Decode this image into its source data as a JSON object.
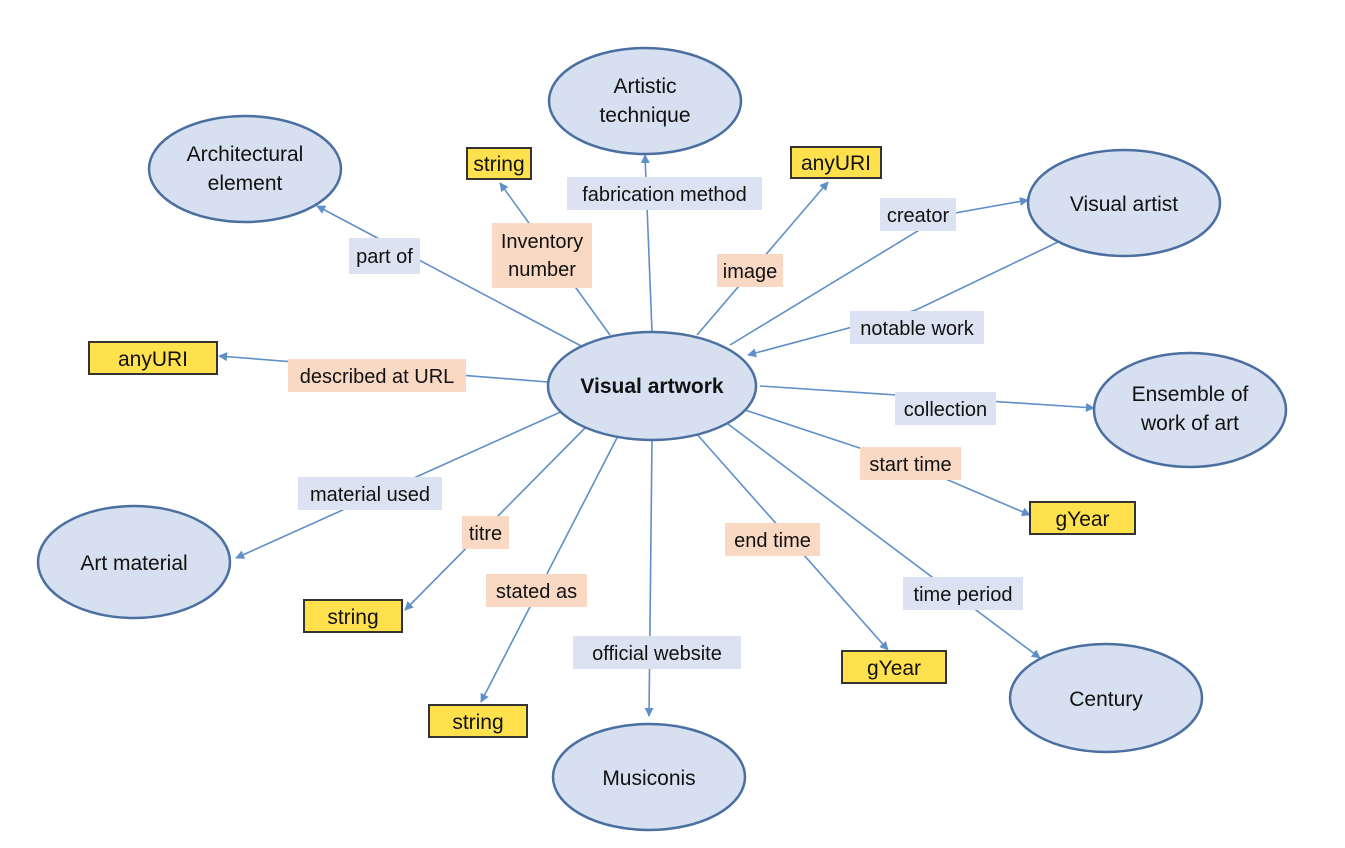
{
  "center": "Visual artwork",
  "nodes": {
    "architectural_element": [
      "Architectural",
      "element"
    ],
    "artistic_technique": [
      "Artistic",
      "technique"
    ],
    "visual_artist": [
      "Visual artist"
    ],
    "ensemble": [
      "Ensemble of",
      "work of art"
    ],
    "art_material": [
      "Art material"
    ],
    "musiconis": [
      "Musiconis"
    ],
    "century": [
      "Century"
    ]
  },
  "datatypes": {
    "string_inventory": "string",
    "anyuri_image": "anyURI",
    "anyuri_described": "anyURI",
    "gyear_start": "gYear",
    "string_titre": "string",
    "string_stated": "string",
    "gyear_end": "gYear"
  },
  "edges": {
    "part_of": [
      "part of"
    ],
    "inventory_number": [
      "Inventory",
      "number"
    ],
    "fabrication_method": [
      "fabrication method"
    ],
    "image": [
      "image"
    ],
    "creator": [
      "creator"
    ],
    "notable_work": [
      "notable work"
    ],
    "described_at_url": [
      "described at URL"
    ],
    "collection": [
      "collection"
    ],
    "start_time": [
      "start time"
    ],
    "material_used": [
      "material used"
    ],
    "titre": [
      "titre"
    ],
    "stated_as": [
      "stated as"
    ],
    "official_website": [
      "official website"
    ],
    "end_time": [
      "end time"
    ],
    "time_period": [
      "time period"
    ]
  },
  "colors": {
    "ellipse_fill": "#d7e0f0",
    "ellipse_stroke": "#4a6fa0",
    "datatype_fill": "#ffe14d",
    "edge": "#5f8fc7",
    "object_property_label": "#dbe3f2",
    "data_property_label": "#f9d8c4"
  }
}
